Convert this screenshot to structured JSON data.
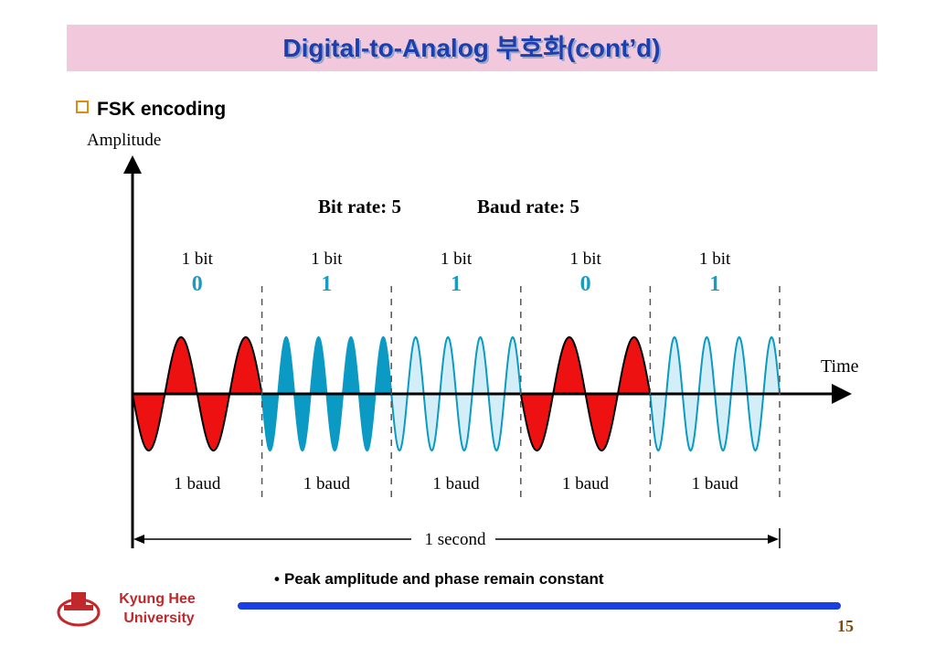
{
  "header": {
    "title": "Digital-to-Analog 부호화(cont’d)"
  },
  "section": "FSK encoding",
  "diagram": {
    "y_axis_label": "Amplitude",
    "x_axis_label": "Time",
    "bit_rate": "Bit rate: 5",
    "baud_rate": "Baud rate: 5",
    "segments": [
      {
        "bit_label": "1 bit",
        "bit": "0",
        "baud_label": "1 baud"
      },
      {
        "bit_label": "1 bit",
        "bit": "1",
        "baud_label": "1 baud"
      },
      {
        "bit_label": "1 bit",
        "bit": "1",
        "baud_label": "1 baud"
      },
      {
        "bit_label": "1 bit",
        "bit": "0",
        "baud_label": "1 baud"
      },
      {
        "bit_label": "1 bit",
        "bit": "1",
        "baud_label": "1 baud"
      }
    ],
    "duration_label": "1 second"
  },
  "note": "Peak amplitude and phase remain constant",
  "footer": {
    "university_line1": "Kyung Hee",
    "university_line2": "University",
    "page": "15"
  }
}
